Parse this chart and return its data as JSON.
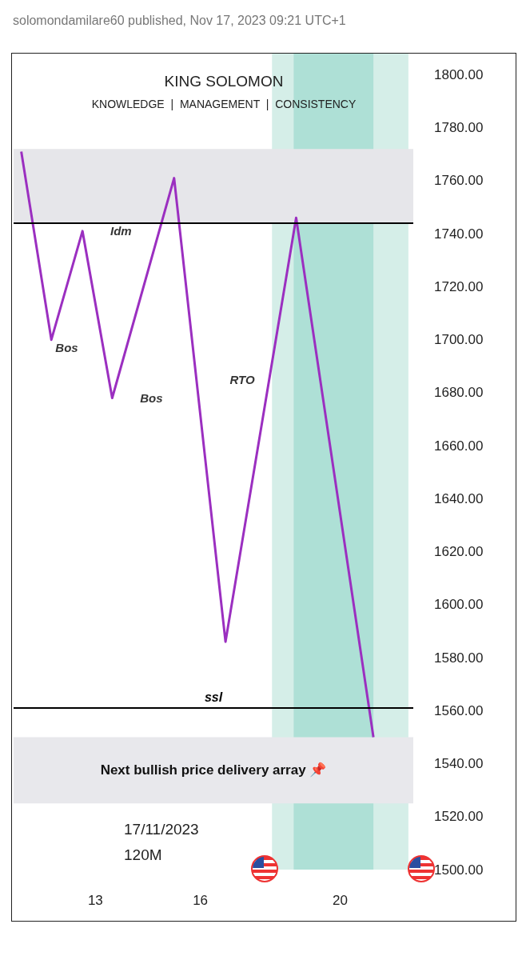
{
  "chart_data": {
    "type": "line",
    "title": "KING SOLOMON",
    "subtitle": "KNOWLEDGE  |  MANAGEMENT  |  CONSISTENCY",
    "x": [
      10.88,
      11.74,
      12.63,
      13.48,
      15.25,
      16.72,
      18.74,
      20.95
    ],
    "series": [
      {
        "color": "#9b2fc0",
        "values": [
          1771,
          1700,
          1741,
          1678,
          1761,
          1586,
          1746,
          1550
        ]
      }
    ],
    "xlim": [
      10.66,
      22.09
    ],
    "xticks": [
      13,
      16,
      20
    ],
    "ylim": [
      1500,
      1808
    ],
    "yticks": [
      {
        "value": 1500,
        "label": "1500.00"
      },
      {
        "value": 1520,
        "label": "1520.00"
      },
      {
        "value": 1540,
        "label": "1540.00"
      },
      {
        "value": 1560,
        "label": "1560.00"
      },
      {
        "value": 1580,
        "label": "1580.00"
      },
      {
        "value": 1600,
        "label": "1600.00"
      },
      {
        "value": 1620,
        "label": "1620.00"
      },
      {
        "value": 1640,
        "label": "1640.00"
      },
      {
        "value": 1660,
        "label": "1660.00"
      },
      {
        "value": 1680,
        "label": "1680.00"
      },
      {
        "value": 1700,
        "label": "1700.00"
      },
      {
        "value": 1720,
        "label": "1720.00"
      },
      {
        "value": 1740,
        "label": "1740.00"
      },
      {
        "value": 1760,
        "label": "1760.00"
      },
      {
        "value": 1780,
        "label": "1780.00"
      },
      {
        "value": 1800,
        "label": "1800.00"
      }
    ],
    "bands": [
      {
        "axis": "x",
        "from": 18.05,
        "to": 21.95,
        "color": "#d5eee8"
      },
      {
        "axis": "x",
        "from": 18.67,
        "to": 20.95,
        "color": "#aee0d6"
      },
      {
        "axis": "y",
        "from": 1750,
        "to": 1772,
        "color": "#e6e6ea"
      },
      {
        "axis": "y",
        "from": 1744,
        "to": 1770,
        "color": "#e6e6ea"
      },
      {
        "axis": "y",
        "from": 1525,
        "to": 1550,
        "color": "#e8e8ec",
        "label": "Next bullish price delivery array 📌"
      }
    ],
    "ref_lines": [
      {
        "axis": "y",
        "value": 1744,
        "color": "#000000"
      },
      {
        "axis": "y",
        "value": 1561,
        "label": "ssl",
        "color": "#000000"
      }
    ],
    "annotations": [
      "solomondamilare60 published, Nov 17, 2023 09:21 UTC+1",
      "17/11/2023",
      "120M",
      {
        "text": "Idm",
        "x": 13.73,
        "y": 1741
      },
      {
        "text": "Bos",
        "x": 12.18,
        "y": 1697
      },
      {
        "text": "Bos",
        "x": 14.6,
        "y": 1678
      },
      {
        "text": "RTO",
        "x": 17.2,
        "y": 1685
      }
    ],
    "marker": "none",
    "line_style": "solid"
  }
}
